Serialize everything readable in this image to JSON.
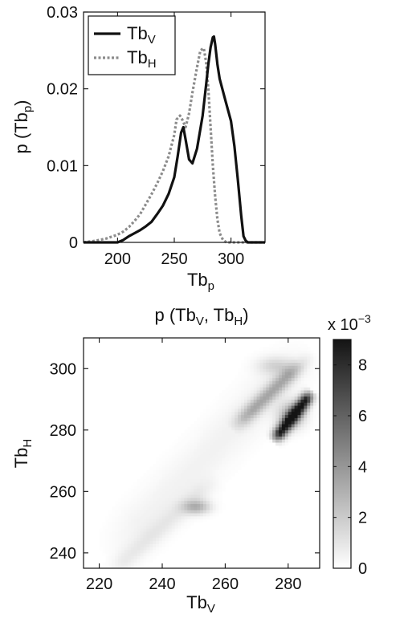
{
  "chart_data": [
    {
      "type": "line",
      "title": "",
      "xlabel": "Tb",
      "xlabel_sub": "p",
      "ylabel": "p (Tb",
      "ylabel_sub": "p",
      "ylabel_close": ")",
      "xlim": [
        170,
        330
      ],
      "ylim": [
        0,
        0.03
      ],
      "xticks": [
        200,
        250,
        300
      ],
      "yticks": [
        0,
        0.01,
        0.02,
        0.03
      ],
      "ytick_labels": [
        "0",
        "0.01",
        "0.02",
        "0.03"
      ],
      "legend_position": "top-left",
      "grid": false,
      "series": [
        {
          "name": "Tb",
          "name_sub": "V",
          "color": "#111111",
          "style": "solid",
          "x": [
            170,
            200,
            205,
            210,
            215,
            220,
            225,
            230,
            235,
            240,
            245,
            250,
            253,
            256,
            258,
            260,
            263,
            266,
            270,
            275,
            278,
            280,
            282,
            284,
            285,
            286,
            288,
            290,
            295,
            300,
            303,
            306,
            309,
            311,
            313,
            315,
            320,
            330
          ],
          "y": [
            0,
            0,
            0.0003,
            0.0008,
            0.0012,
            0.0016,
            0.0021,
            0.0027,
            0.0037,
            0.0048,
            0.0063,
            0.0085,
            0.0112,
            0.0143,
            0.015,
            0.0134,
            0.0108,
            0.0103,
            0.0122,
            0.0165,
            0.0205,
            0.0232,
            0.0254,
            0.0267,
            0.0268,
            0.0258,
            0.0232,
            0.0213,
            0.0185,
            0.0158,
            0.0125,
            0.0082,
            0.0035,
            0.0008,
            0.0002,
            0,
            0,
            0
          ]
        },
        {
          "name": "Tb",
          "name_sub": "H",
          "color": "#8c8c8c",
          "style": "dotted",
          "x": [
            170,
            180,
            190,
            200,
            205,
            210,
            215,
            220,
            225,
            230,
            235,
            240,
            245,
            250,
            252,
            255,
            257,
            260,
            263,
            266,
            270,
            273,
            276,
            278,
            280,
            282,
            284,
            286,
            288,
            290,
            293,
            296,
            300,
            310,
            330
          ],
          "y": [
            0,
            0.0002,
            0.0005,
            0.001,
            0.0014,
            0.002,
            0.0028,
            0.0037,
            0.005,
            0.0063,
            0.0077,
            0.0093,
            0.0112,
            0.014,
            0.016,
            0.0165,
            0.016,
            0.015,
            0.0168,
            0.0195,
            0.0228,
            0.025,
            0.0253,
            0.0235,
            0.02,
            0.015,
            0.01,
            0.006,
            0.003,
            0.0012,
            0.0003,
            0,
            0,
            0,
            0
          ]
        }
      ]
    },
    {
      "type": "heatmap",
      "title": "p (Tb",
      "title_sub1": "V",
      "title_mid": ", Tb",
      "title_sub2": "H",
      "title_close": ")",
      "xlabel": "Tb",
      "xlabel_sub": "V",
      "ylabel": "Tb",
      "ylabel_sub": "H",
      "xlim": [
        215,
        290
      ],
      "ylim": [
        235,
        310
      ],
      "xticks": [
        220,
        240,
        260,
        280
      ],
      "yticks": [
        240,
        260,
        280,
        300
      ],
      "colormap": "gray-reversed",
      "colorbar": {
        "range": [
          0,
          9
        ],
        "ticks": [
          0,
          2,
          4,
          6,
          8
        ],
        "multiplier_prefix": "x 10",
        "multiplier_exp": "−3"
      },
      "ridges": [
        {
          "from": [
            222,
            237
          ],
          "to": [
            288,
            308
          ],
          "peak": 0.5,
          "width": 5
        },
        {
          "from": [
            222,
            232
          ],
          "to": [
            258,
            265
          ],
          "peak": 0.7,
          "width": 2.2
        },
        {
          "from": [
            275,
            276
          ],
          "to": [
            288,
            293
          ],
          "peak": 8.5,
          "width": 1.4
        },
        {
          "from": [
            262,
            280
          ],
          "to": [
            284,
            302
          ],
          "peak": 2.0,
          "width": 1.8
        },
        {
          "from": [
            265,
            283
          ],
          "to": [
            288,
            305
          ],
          "peak": 1.0,
          "width": 1.6
        }
      ],
      "blobs": [
        {
          "center": [
            251,
            255
          ],
          "peak": 2.8,
          "sx": 3.0,
          "sy": 1.6
        },
        {
          "center": [
            281,
            285
          ],
          "peak": 3.0,
          "sx": 3.0,
          "sy": 3.0
        },
        {
          "center": [
            276,
            301
          ],
          "peak": 1.5,
          "sx": 4.0,
          "sy": 2.0
        }
      ]
    }
  ]
}
